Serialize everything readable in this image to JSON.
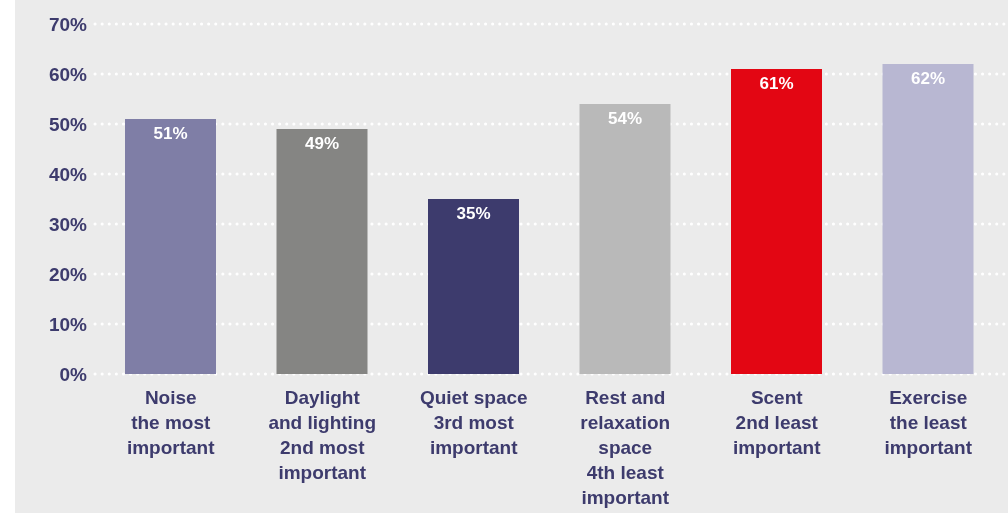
{
  "chart_data": {
    "type": "bar",
    "categories": [
      "Noise\nthe most\nimportant",
      "Daylight\nand lighting\n2nd most\nimportant",
      "Quiet space\n3rd most\nimportant",
      "Rest and\nrelaxation\nspace\n4th least\nimportant",
      "Scent\n2nd least\nimportant",
      "Exercise\nthe least\nimportant"
    ],
    "values": [
      51,
      49,
      35,
      54,
      61,
      62
    ],
    "colors": [
      "#7f7ea6",
      "#858583",
      "#3d3b6d",
      "#b9b9b9",
      "#e30613",
      "#b8b7d2"
    ],
    "value_labels": [
      "51%",
      "49%",
      "35%",
      "54%",
      "61%",
      "62%"
    ],
    "ylim": [
      0,
      70
    ],
    "yticks": [
      {
        "value": 0,
        "label": "0%"
      },
      {
        "value": 10,
        "label": "10%"
      },
      {
        "value": 20,
        "label": "20%"
      },
      {
        "value": 30,
        "label": "30%"
      },
      {
        "value": 40,
        "label": "40%"
      },
      {
        "value": 50,
        "label": "50%"
      },
      {
        "value": 60,
        "label": "60%"
      },
      {
        "value": 70,
        "label": "70%"
      }
    ],
    "grid": "y"
  }
}
